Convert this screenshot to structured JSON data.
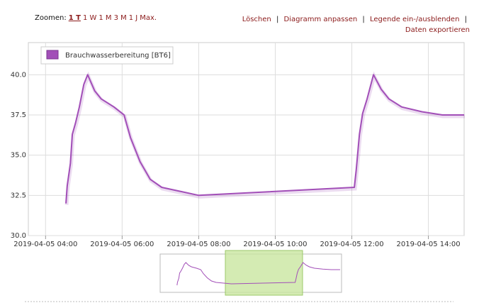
{
  "toolbar": {
    "zoom_label": "Zoomen:",
    "zoom_options": [
      "1 T",
      "1 W",
      "1 M",
      "3 M",
      "1 J",
      "Max."
    ],
    "actions": [
      "Löschen",
      "Diagramm anpassen",
      "Legende ein-/ausblenden",
      "Daten exportieren"
    ],
    "separator": "|"
  },
  "chart_data": {
    "type": "line",
    "series": [
      {
        "name": "Brauchwasserbereitung [BT6]",
        "color": "#a24fb8",
        "x": [
          "2019-04-05 04:32",
          "2019-04-05 04:34",
          "2019-04-05 04:39",
          "2019-04-05 04:42",
          "2019-04-05 04:47",
          "2019-04-05 04:53",
          "2019-04-05 05:00",
          "2019-04-05 05:06",
          "2019-04-05 05:17",
          "2019-04-05 05:27",
          "2019-04-05 05:47",
          "2019-04-05 06:03",
          "2019-04-05 06:13",
          "2019-04-05 06:28",
          "2019-04-05 06:44",
          "2019-04-05 07:02",
          "2019-04-05 08:00",
          "2019-04-05 12:04",
          "2019-04-05 12:07",
          "2019-04-05 12:12",
          "2019-04-05 12:17",
          "2019-04-05 12:24",
          "2019-04-05 12:34",
          "2019-04-05 12:46",
          "2019-04-05 12:58",
          "2019-04-05 13:18",
          "2019-04-05 13:50",
          "2019-04-05 14:22",
          "2019-04-05 14:56"
        ],
        "values": [
          32.0,
          33.1,
          34.5,
          36.3,
          37.0,
          38.0,
          39.4,
          40.0,
          39.0,
          38.5,
          38.0,
          37.5,
          36.1,
          34.6,
          33.5,
          33.0,
          32.5,
          33.0,
          34.1,
          36.3,
          37.6,
          38.5,
          40.0,
          39.1,
          38.5,
          38.0,
          37.7,
          37.5,
          37.5
        ]
      }
    ],
    "xlim": [
      "2019-04-05 03:33",
      "2019-04-05 14:56"
    ],
    "xticks": [
      "2019-04-05 04:00",
      "2019-04-05 06:00",
      "2019-04-05 08:00",
      "2019-04-05 10:00",
      "2019-04-05 12:00",
      "2019-04-05 14:00"
    ],
    "ylim": [
      30,
      42
    ],
    "yticks": [
      {
        "value": 30,
        "label": "30.0"
      },
      {
        "value": 32.5,
        "label": "32.5"
      },
      {
        "value": 35,
        "label": "35.0"
      },
      {
        "value": 37.5,
        "label": "37.5"
      },
      {
        "value": 40,
        "label": "40.0"
      }
    ],
    "grid": true,
    "legend": "top-left"
  }
}
